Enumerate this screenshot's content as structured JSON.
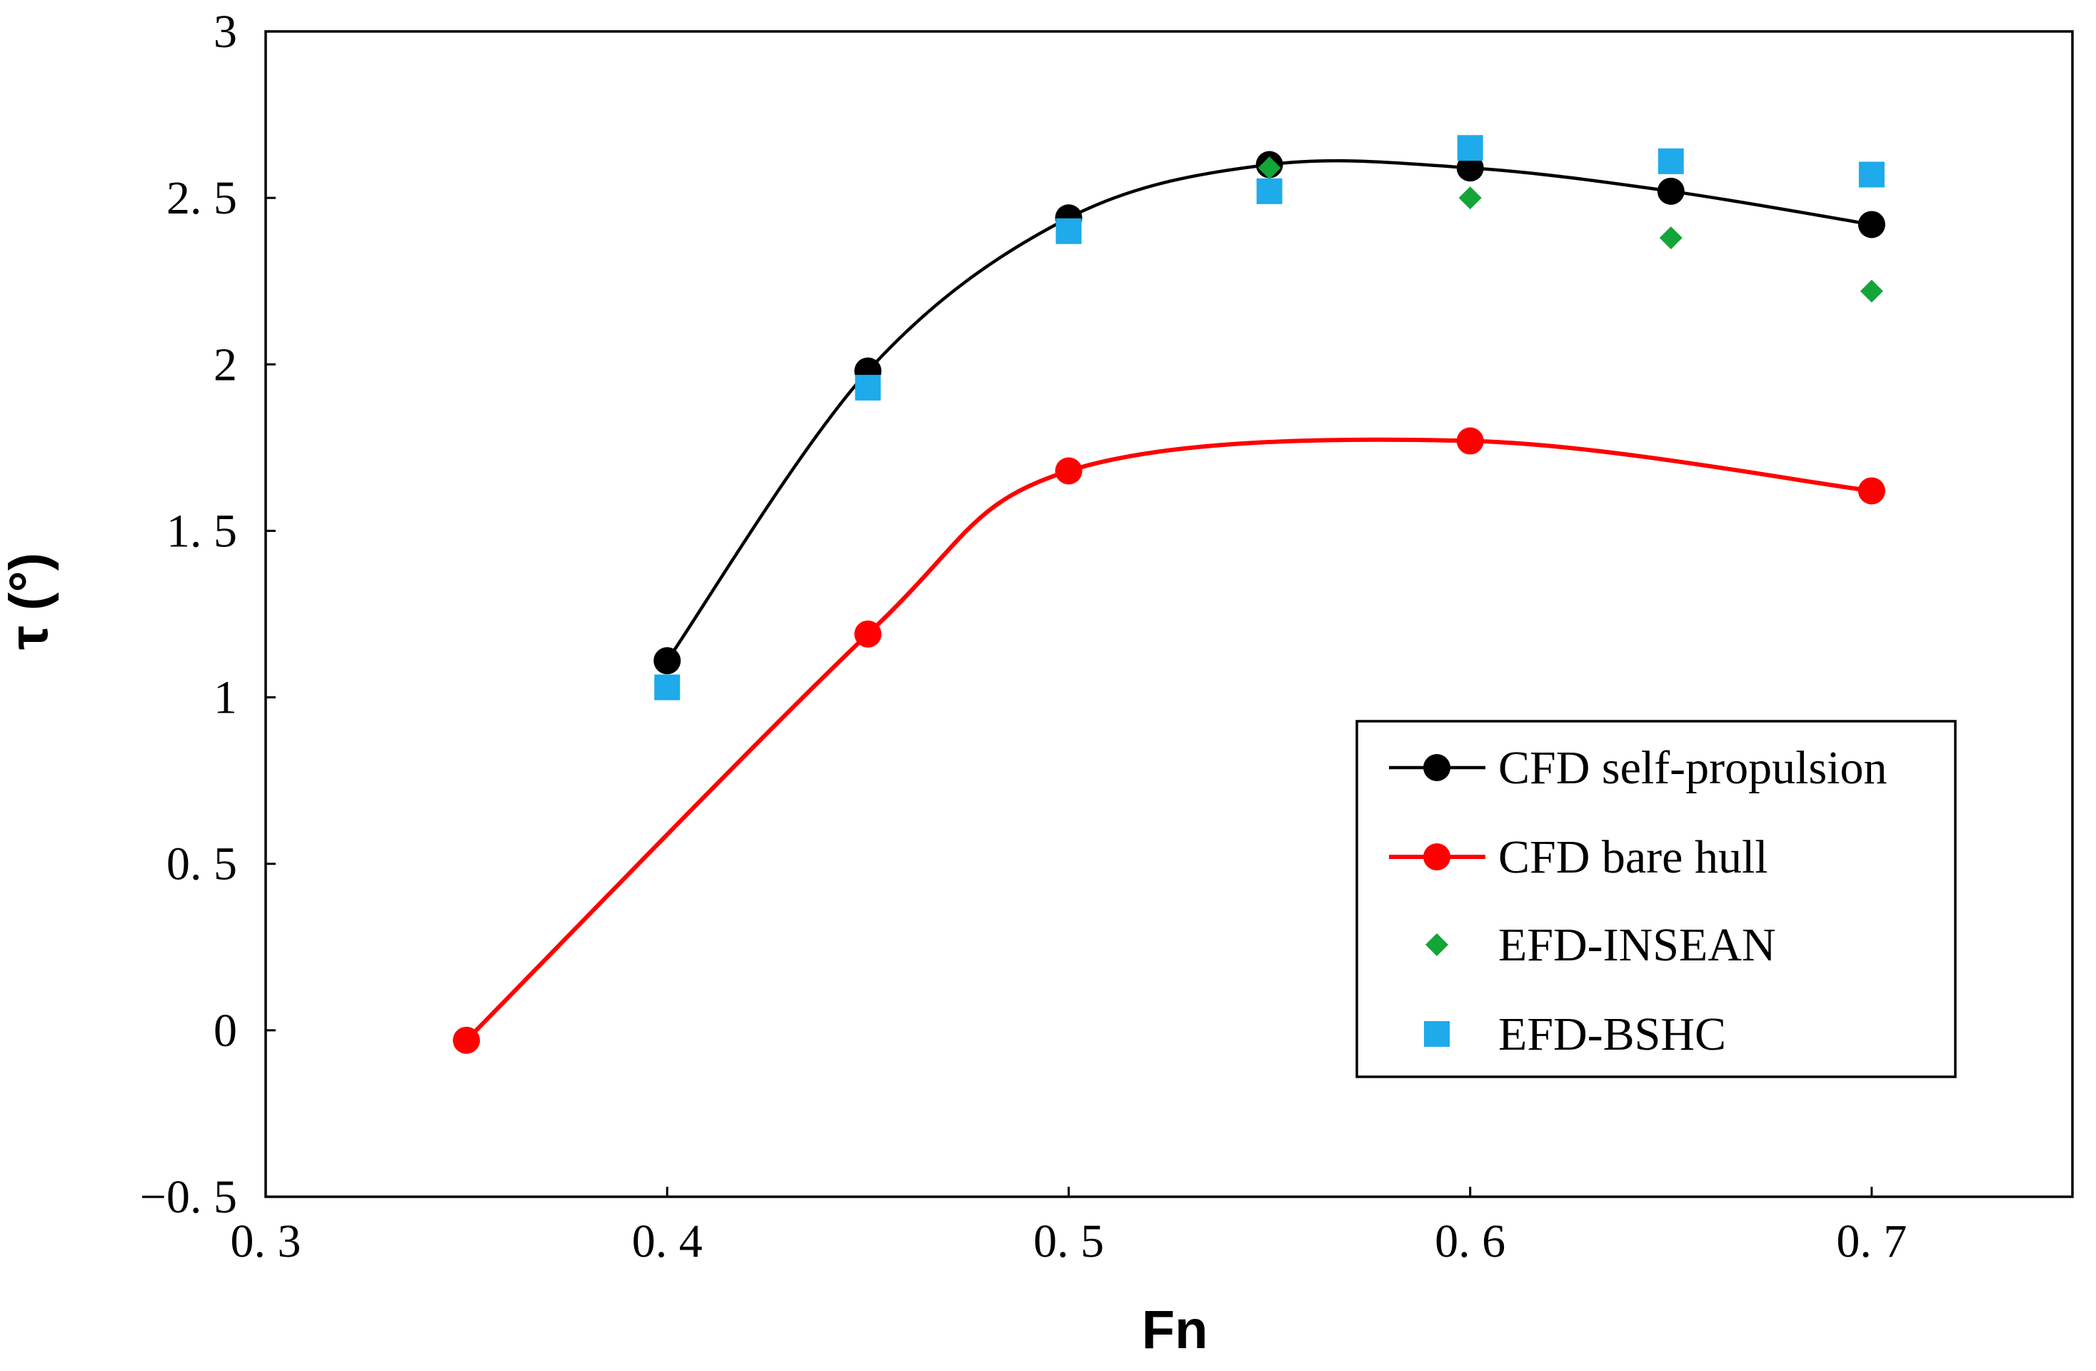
{
  "chart_data": {
    "type": "line",
    "title": "",
    "xlabel": "Fn",
    "ylabel": "τ (°)",
    "xlim": [
      0.3,
      0.75
    ],
    "ylim": [
      -0.5,
      3
    ],
    "xticks": [
      0.3,
      0.4,
      0.5,
      0.6,
      0.7
    ],
    "xtick_labels": [
      "0. 3",
      "0. 4",
      "0. 5",
      "0. 6",
      "0. 7"
    ],
    "yticks": [
      -0.5,
      0,
      0.5,
      1,
      1.5,
      2,
      2.5,
      3
    ],
    "ytick_labels": [
      "−0. 5",
      "0",
      "0. 5",
      "1",
      "1. 5",
      "2",
      "2. 5",
      "3"
    ],
    "grid": false,
    "legend_position": "bottom-right",
    "series": [
      {
        "name": "CFD self-propulsion",
        "kind": "line-marker",
        "color": "#000000",
        "marker": "circle",
        "x": [
          0.4,
          0.45,
          0.5,
          0.55,
          0.6,
          0.65,
          0.7
        ],
        "y": [
          1.11,
          1.98,
          2.44,
          2.6,
          2.59,
          2.52,
          2.42
        ]
      },
      {
        "name": "CFD bare hull",
        "kind": "line-marker",
        "color": "#ff0000",
        "marker": "circle",
        "x": [
          0.35,
          0.45,
          0.5,
          0.6,
          0.7
        ],
        "y": [
          -0.03,
          1.19,
          1.68,
          1.77,
          1.62
        ]
      },
      {
        "name": "EFD-INSEAN",
        "kind": "marker",
        "color": "#13a538",
        "marker": "diamond",
        "x": [
          0.55,
          0.6,
          0.65,
          0.7
        ],
        "y": [
          2.59,
          2.5,
          2.38,
          2.22
        ]
      },
      {
        "name": "EFD-BSHC",
        "kind": "marker",
        "color": "#1eaaeb",
        "marker": "square",
        "x": [
          0.4,
          0.45,
          0.5,
          0.55,
          0.6,
          0.65,
          0.7
        ],
        "y": [
          1.03,
          1.93,
          2.4,
          2.52,
          2.65,
          2.61,
          2.57
        ]
      }
    ]
  }
}
